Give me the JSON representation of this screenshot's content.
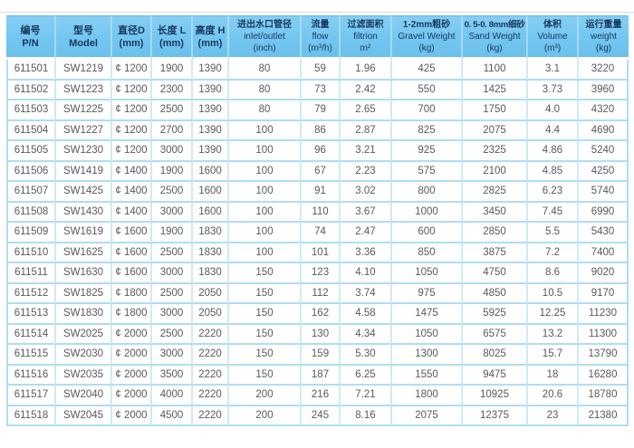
{
  "colors": {
    "header_bg_top": "#86cef2",
    "header_bg_bottom": "#6cc0ec",
    "header_text": "#17365d",
    "row_border": "#aeddf5",
    "column_border": "#cfeaf9",
    "body_text": "#58595b",
    "top_rule": "#dadada"
  },
  "table": {
    "columns": [
      {
        "line1": "编号",
        "line2": "P/N"
      },
      {
        "line1": "型号",
        "line2": "Model"
      },
      {
        "line1": "直径D",
        "line2": "(mm)"
      },
      {
        "line1": "长度 L",
        "line2": "(mm)"
      },
      {
        "line1": "高度 H",
        "line2": "(mm)"
      },
      {
        "line1": "进出水口管径",
        "line2": "inlet/outlet",
        "line3": "(inch)"
      },
      {
        "line1": "流量",
        "line2": "flow",
        "line3": "(m³/h)"
      },
      {
        "line1": "过滤面积",
        "line2": "filtrion",
        "line3": "m²"
      },
      {
        "line1": "1-2mm粗砂",
        "line2": "Gravel Weight",
        "line3": "(kg)"
      },
      {
        "line1": "0. 5-0. 8mm细砂",
        "line2": "Sand Weight",
        "line3": "(kg)"
      },
      {
        "line1": "体积",
        "line2": "Volume",
        "line3": "(m³)"
      },
      {
        "line1": "运行重量",
        "line2": "weight",
        "line3": "(kg)"
      }
    ],
    "rows": [
      [
        "611501",
        "SW1219",
        "¢ 1200",
        "1900",
        "1390",
        "80",
        "59",
        "1.96",
        "425",
        "1100",
        "3.1",
        "3220"
      ],
      [
        "611502",
        "SW1223",
        "¢ 1200",
        "2300",
        "1390",
        "80",
        "73",
        "2.42",
        "550",
        "1425",
        "3.73",
        "3960"
      ],
      [
        "611503",
        "SW1225",
        "¢ 1200",
        "2500",
        "1390",
        "80",
        "79",
        "2.65",
        "700",
        "1750",
        "4.0",
        "4320"
      ],
      [
        "611504",
        "SW1227",
        "¢ 1200",
        "2700",
        "1390",
        "100",
        "86",
        "2.87",
        "825",
        "2075",
        "4.4",
        "4690"
      ],
      [
        "611505",
        "SW1230",
        "¢ 1200",
        "3000",
        "1390",
        "100",
        "96",
        "3.21",
        "925",
        "2325",
        "4.86",
        "5240"
      ],
      [
        "611506",
        "SW1419",
        "¢ 1400",
        "1900",
        "1600",
        "100",
        "67",
        "2.23",
        "575",
        "2100",
        "4.85",
        "4250"
      ],
      [
        "611507",
        "SW1425",
        "¢ 1400",
        "2500",
        "1600",
        "100",
        "91",
        "3.02",
        "800",
        "2825",
        "6.23",
        "5740"
      ],
      [
        "611508",
        "SW1430",
        "¢ 1400",
        "3000",
        "1600",
        "100",
        "110",
        "3.67",
        "1000",
        "3450",
        "7.45",
        "6990"
      ],
      [
        "611509",
        "SW1619",
        "¢ 1600",
        "1900",
        "1830",
        "100",
        "74",
        "2.47",
        "600",
        "2850",
        "5.5",
        "5430"
      ],
      [
        "611510",
        "SW1625",
        "¢ 1600",
        "2500",
        "1830",
        "100",
        "101",
        "3.36",
        "850",
        "3875",
        "7.2",
        "7400"
      ],
      [
        "611511",
        "SW1630",
        "¢ 1600",
        "3000",
        "1830",
        "150",
        "123",
        "4.10",
        "1050",
        "4750",
        "8.6",
        "9020"
      ],
      [
        "611512",
        "SW1825",
        "¢ 1800",
        "2500",
        "2050",
        "150",
        "112",
        "3.74",
        "975",
        "4850",
        "10.5",
        "9170"
      ],
      [
        "611513",
        "SW1830",
        "¢ 1800",
        "3000",
        "2050",
        "150",
        "162",
        "4.58",
        "1475",
        "5925",
        "12.25",
        "11230"
      ],
      [
        "611514",
        "SW2025",
        "¢ 2000",
        "2500",
        "2220",
        "150",
        "130",
        "4.34",
        "1050",
        "6575",
        "13.2",
        "11300"
      ],
      [
        "611515",
        "SW2030",
        "¢ 2000",
        "3000",
        "2220",
        "150",
        "159",
        "5.30",
        "1300",
        "8025",
        "15.7",
        "13790"
      ],
      [
        "611516",
        "SW2035",
        "¢ 2000",
        "3500",
        "2220",
        "150",
        "187",
        "6.25",
        "1550",
        "9475",
        "18",
        "16280"
      ],
      [
        "611517",
        "SW2040",
        "¢ 2000",
        "4000",
        "2220",
        "200",
        "216",
        "7.21",
        "1800",
        "10925",
        "20.6",
        "18780"
      ],
      [
        "611518",
        "SW2045",
        "¢ 2000",
        "4500",
        "2220",
        "200",
        "245",
        "8.16",
        "2075",
        "12375",
        "23",
        "21380"
      ]
    ]
  }
}
